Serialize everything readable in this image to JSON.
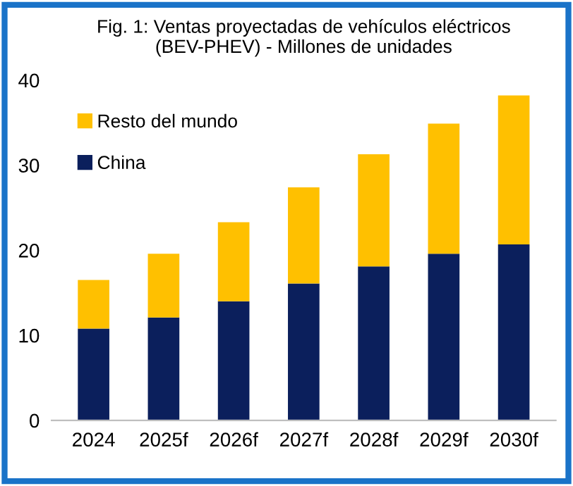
{
  "chart_data": {
    "type": "bar",
    "title": "Fig. 1: Ventas proyectadas de vehículos eléctricos\n(BEV-PHEV) - Millones de unidades",
    "categories": [
      "2024",
      "2025f",
      "2026f",
      "2027f",
      "2028f",
      "2029f",
      "2030f"
    ],
    "stacked": true,
    "series": [
      {
        "name": "China",
        "color": "#0b1f5c",
        "values": [
          10.8,
          12.1,
          14.0,
          16.1,
          18.1,
          19.6,
          20.7
        ]
      },
      {
        "name": "Resto del mundo",
        "color": "#ffc000",
        "values": [
          5.7,
          7.5,
          9.3,
          11.3,
          13.2,
          15.3,
          17.5
        ]
      }
    ],
    "ylim": [
      0,
      40
    ],
    "yticks": [
      0,
      10,
      20,
      30,
      40
    ],
    "grid": false,
    "legend": "top left"
  }
}
